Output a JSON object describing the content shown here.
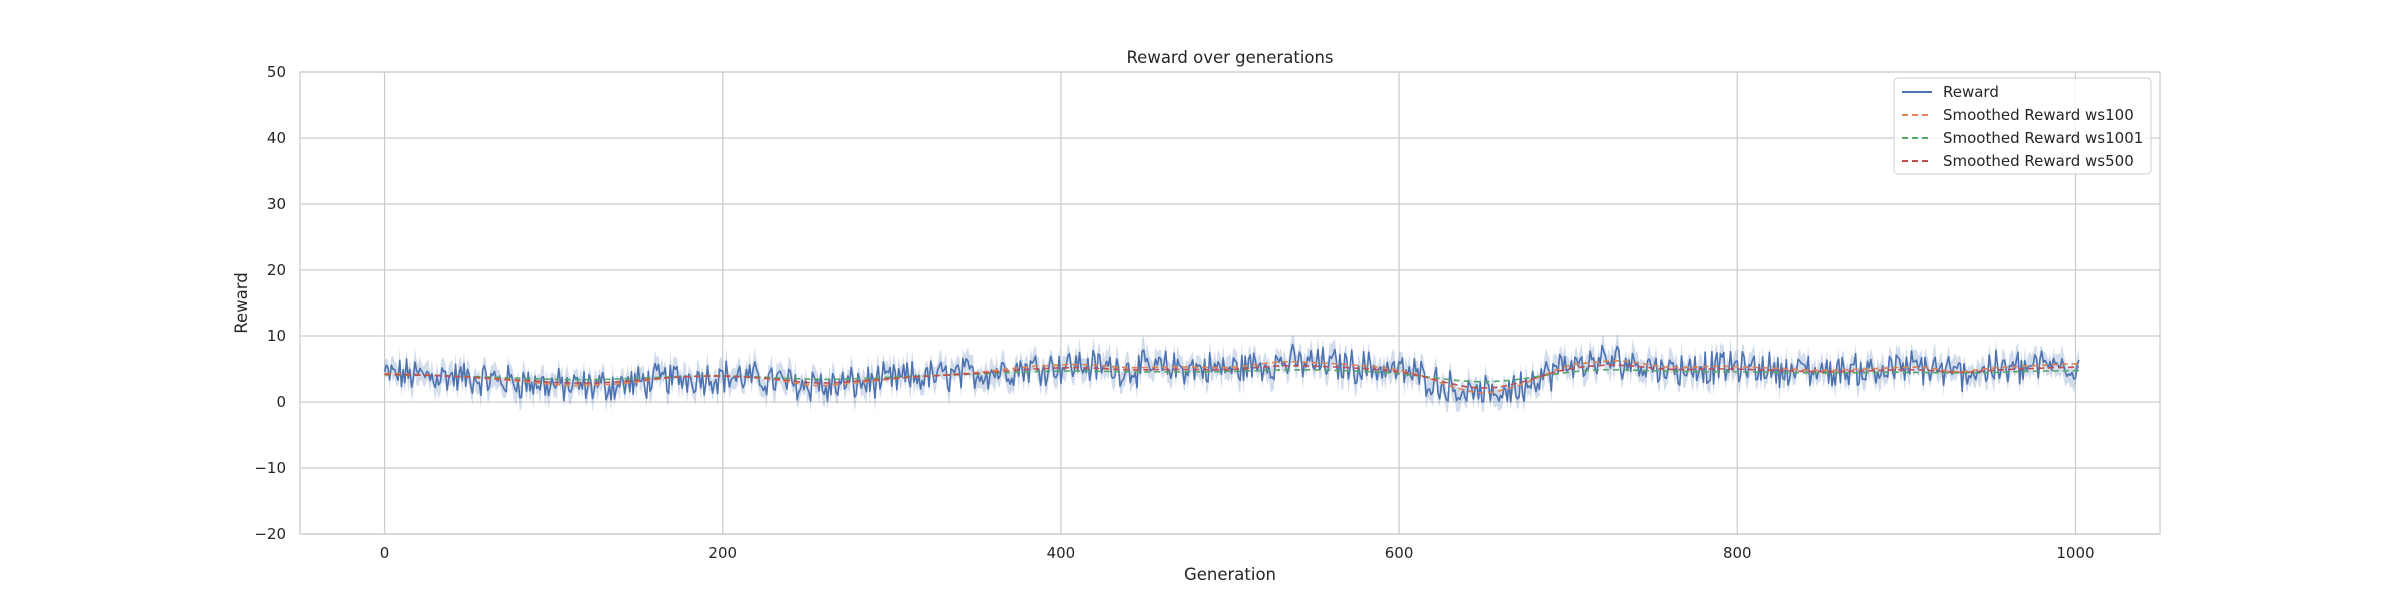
{
  "chart_data": {
    "type": "line",
    "title": "Reward over generations",
    "xlabel": "Generation",
    "ylabel": "Reward",
    "xlim": [
      -50,
      1050
    ],
    "ylim": [
      -20,
      50
    ],
    "xticks": [
      0,
      200,
      400,
      600,
      800,
      1000
    ],
    "yticks": [
      -20,
      -10,
      0,
      10,
      20,
      30,
      40,
      50
    ],
    "grid": true,
    "legend_location": "top-right",
    "x_range": [
      0,
      1002
    ],
    "anchors": [
      [
        0,
        4.2
      ],
      [
        40,
        3.8
      ],
      [
        80,
        3.0
      ],
      [
        110,
        2.3
      ],
      [
        140,
        2.6
      ],
      [
        170,
        3.6
      ],
      [
        200,
        3.9
      ],
      [
        230,
        3.3
      ],
      [
        255,
        2.2
      ],
      [
        280,
        2.8
      ],
      [
        310,
        3.6
      ],
      [
        350,
        4.3
      ],
      [
        380,
        5.2
      ],
      [
        410,
        5.6
      ],
      [
        440,
        5.0
      ],
      [
        470,
        5.2
      ],
      [
        500,
        5.0
      ],
      [
        530,
        6.0
      ],
      [
        560,
        5.7
      ],
      [
        590,
        5.1
      ],
      [
        610,
        4.2
      ],
      [
        630,
        2.2
      ],
      [
        650,
        1.0
      ],
      [
        670,
        2.2
      ],
      [
        700,
        5.5
      ],
      [
        730,
        6.2
      ],
      [
        760,
        5.0
      ],
      [
        790,
        5.3
      ],
      [
        820,
        5.0
      ],
      [
        850,
        4.6
      ],
      [
        880,
        4.9
      ],
      [
        910,
        5.2
      ],
      [
        930,
        4.3
      ],
      [
        950,
        5.0
      ],
      [
        980,
        5.4
      ],
      [
        1002,
        5.7
      ]
    ],
    "noise_amplitude": 2.2,
    "band_half_width": 1.6,
    "series": [
      {
        "name": "Reward",
        "color": "#4c72b0",
        "style": "solid",
        "band_color": "#4c72b0"
      },
      {
        "name": "Smoothed Reward ws100",
        "color": "#dd8452",
        "style": "dashed",
        "window": 100
      },
      {
        "name": "Smoothed Reward ws1001",
        "color": "#55a868",
        "style": "dashed",
        "window": 1001
      },
      {
        "name": "Smoothed Reward ws500",
        "color": "#c44e52",
        "style": "dashed",
        "window": 500
      }
    ]
  }
}
